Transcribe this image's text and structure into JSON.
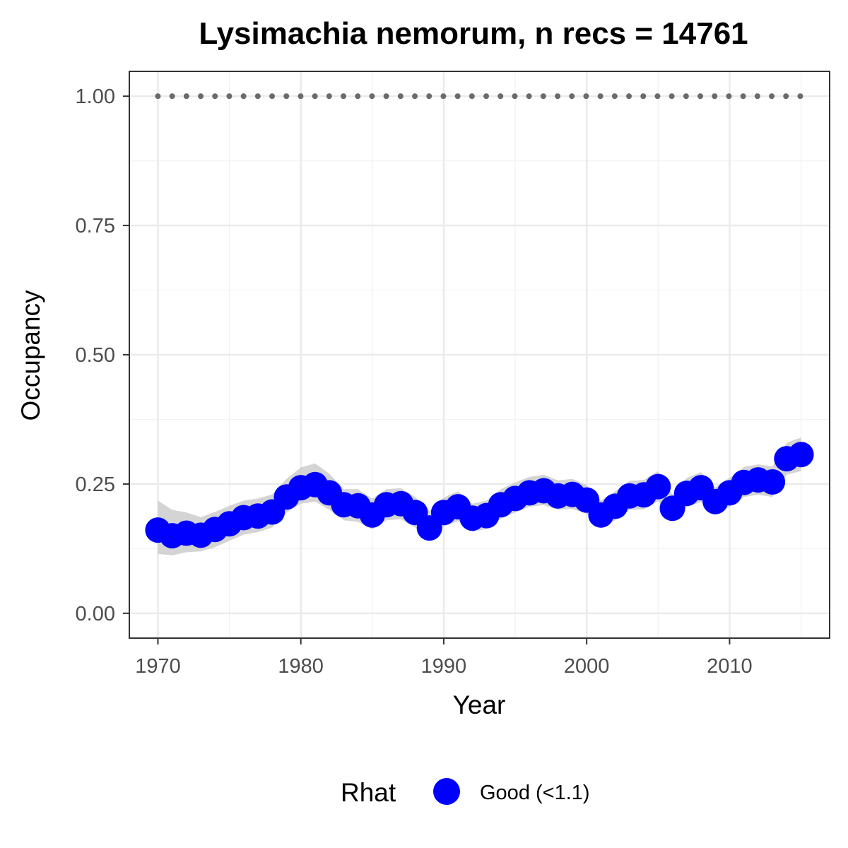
{
  "chart_data": {
    "type": "line",
    "title": "Lysimachia nemorum, n recs = 14761",
    "xlabel": "Year",
    "ylabel": "Occupancy",
    "xlim": [
      1968,
      2017
    ],
    "ylim": [
      -0.048,
      1.048
    ],
    "x_ticks": [
      1970,
      1980,
      1990,
      2000,
      2010
    ],
    "y_ticks": [
      0.0,
      0.25,
      0.5,
      0.75,
      1.0
    ],
    "y_tick_labels": [
      "0.00",
      "0.25",
      "0.50",
      "0.75",
      "1.00"
    ],
    "x_tick_labels": [
      "1970",
      "1980",
      "1990",
      "2000",
      "2010"
    ],
    "grid": true,
    "legend": {
      "title": "Rhat",
      "position": "bottom",
      "entries": [
        {
          "label": "Good (<1.1)",
          "color": "#0000ff"
        }
      ]
    },
    "colors": {
      "points": "#0000ff",
      "ribbon": "#cccccc",
      "reference_line": "#6b6b6b"
    },
    "series": [
      {
        "name": "Occupancy",
        "x": [
          1970,
          1971,
          1972,
          1973,
          1974,
          1975,
          1976,
          1977,
          1978,
          1979,
          1980,
          1981,
          1982,
          1983,
          1984,
          1985,
          1986,
          1987,
          1988,
          1989,
          1990,
          1991,
          1992,
          1993,
          1994,
          1995,
          1996,
          1997,
          1998,
          1999,
          2000,
          2001,
          2002,
          2003,
          2004,
          2005,
          2006,
          2007,
          2008,
          2009,
          2010,
          2011,
          2012,
          2013,
          2014,
          2015
        ],
        "values": [
          0.161,
          0.15,
          0.155,
          0.151,
          0.162,
          0.173,
          0.185,
          0.188,
          0.196,
          0.225,
          0.243,
          0.249,
          0.233,
          0.21,
          0.208,
          0.19,
          0.21,
          0.212,
          0.195,
          0.165,
          0.195,
          0.206,
          0.184,
          0.189,
          0.21,
          0.222,
          0.233,
          0.237,
          0.227,
          0.23,
          0.219,
          0.19,
          0.207,
          0.227,
          0.229,
          0.245,
          0.203,
          0.232,
          0.243,
          0.216,
          0.233,
          0.253,
          0.258,
          0.254,
          0.299,
          0.307
        ],
        "lower": [
          0.115,
          0.112,
          0.118,
          0.12,
          0.128,
          0.14,
          0.152,
          0.157,
          0.166,
          0.195,
          0.212,
          0.216,
          0.2,
          0.18,
          0.177,
          0.162,
          0.18,
          0.182,
          0.166,
          0.14,
          0.168,
          0.178,
          0.158,
          0.163,
          0.183,
          0.195,
          0.206,
          0.209,
          0.2,
          0.202,
          0.192,
          0.165,
          0.18,
          0.2,
          0.201,
          0.217,
          0.178,
          0.205,
          0.215,
          0.19,
          0.206,
          0.225,
          0.229,
          0.225,
          0.268,
          0.275
        ],
        "upper": [
          0.218,
          0.2,
          0.195,
          0.186,
          0.196,
          0.208,
          0.218,
          0.222,
          0.23,
          0.26,
          0.282,
          0.29,
          0.27,
          0.24,
          0.24,
          0.222,
          0.24,
          0.242,
          0.225,
          0.198,
          0.224,
          0.236,
          0.212,
          0.218,
          0.24,
          0.253,
          0.264,
          0.268,
          0.257,
          0.26,
          0.248,
          0.218,
          0.236,
          0.256,
          0.258,
          0.275,
          0.23,
          0.262,
          0.273,
          0.244,
          0.262,
          0.283,
          0.288,
          0.284,
          0.33,
          0.34
        ]
      },
      {
        "name": "Reference",
        "style": "dotted",
        "x": [
          1970,
          2015
        ],
        "values": [
          1.0,
          1.0
        ]
      }
    ]
  }
}
